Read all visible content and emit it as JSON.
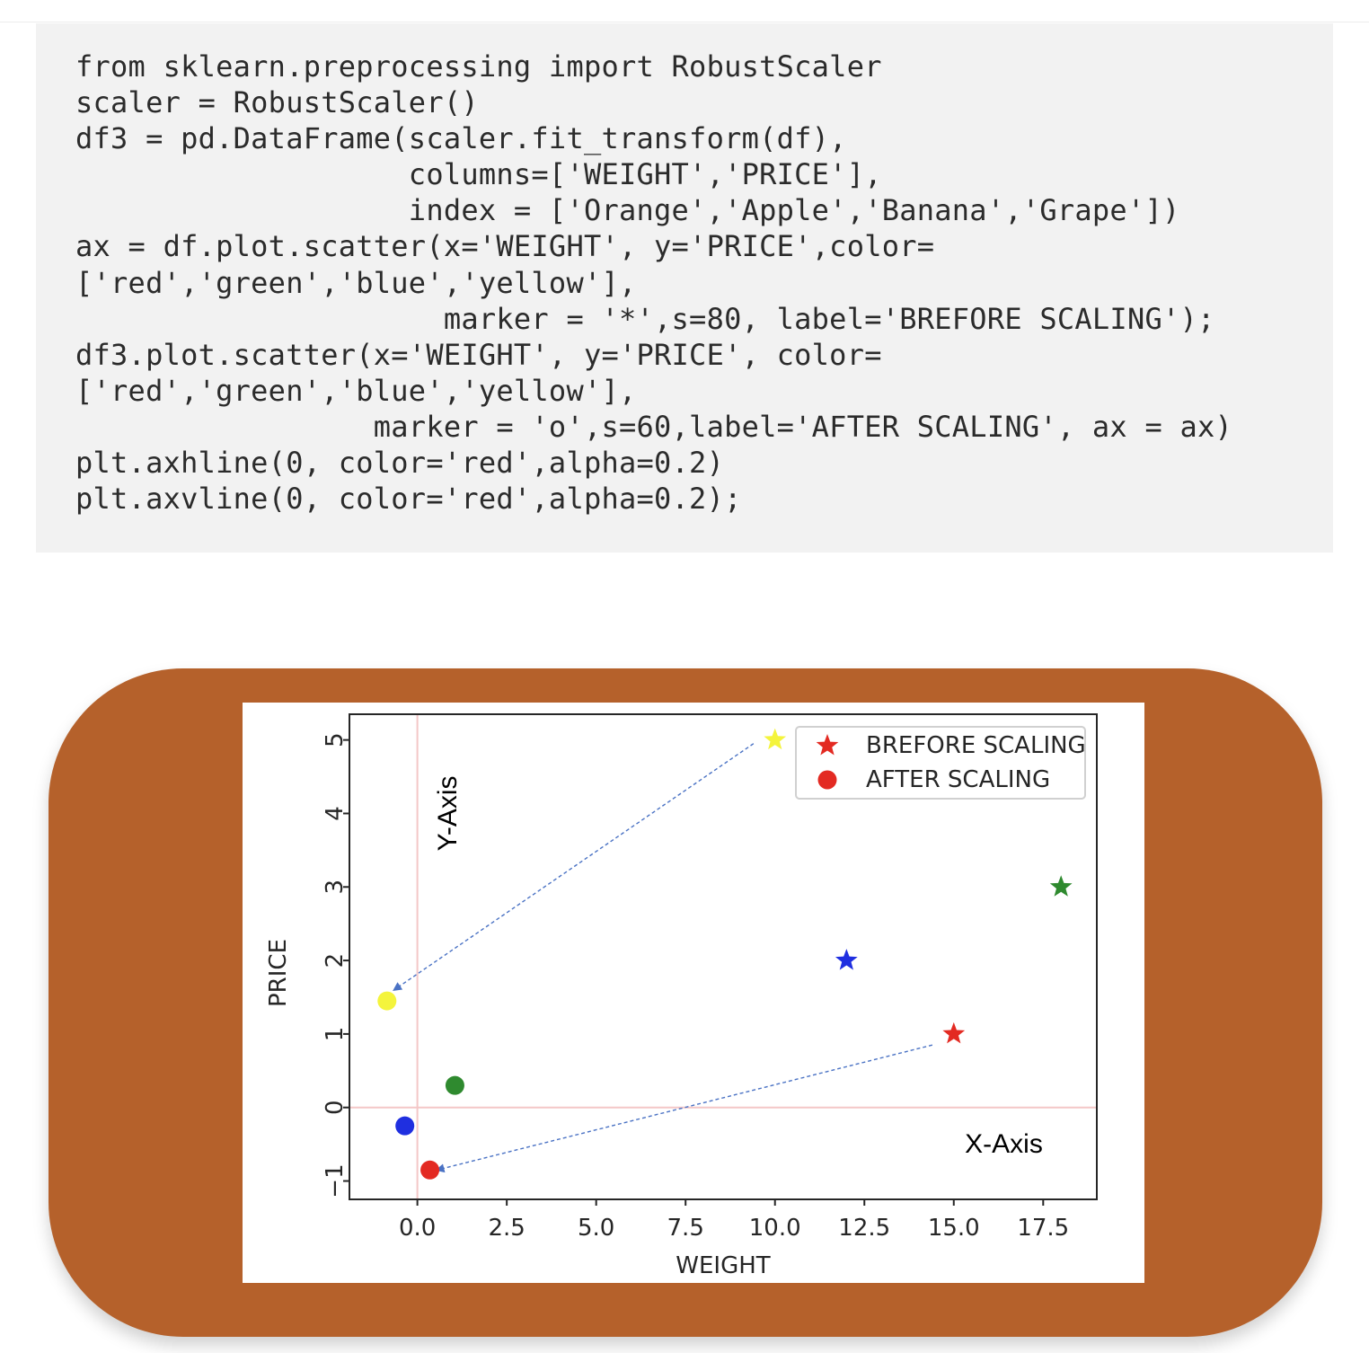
{
  "code": {
    "lines": [
      "from sklearn.preprocessing import RobustScaler",
      "scaler = RobustScaler()",
      "df3 = pd.DataFrame(scaler.fit_transform(df),",
      "                   columns=['WEIGHT','PRICE'],",
      "                   index = ['Orange','Apple','Banana','Grape'])",
      "ax = df.plot.scatter(x='WEIGHT', y='PRICE',color=",
      "['red','green','blue','yellow'],",
      "                     marker = '*',s=80, label='BREFORE SCALING');",
      "df3.plot.scatter(x='WEIGHT', y='PRICE', color=",
      "['red','green','blue','yellow'],",
      "                 marker = 'o',s=60,label='AFTER SCALING', ax = ax)",
      "plt.axhline(0, color='red',alpha=0.2)",
      "plt.axvline(0, color='red',alpha=0.2);"
    ]
  },
  "frame": {
    "color": "#b5612b"
  },
  "chart_data": {
    "type": "scatter",
    "title": "",
    "xlabel": "WEIGHT",
    "ylabel": "PRICE",
    "xlim": [
      -1.9,
      19.0
    ],
    "ylim": [
      -1.25,
      5.35
    ],
    "xticks": [
      0.0,
      2.5,
      5.0,
      7.5,
      10.0,
      12.5,
      15.0,
      17.5
    ],
    "xtick_labels": [
      "0.0",
      "2.5",
      "5.0",
      "7.5",
      "10.0",
      "12.5",
      "15.0",
      "17.5"
    ],
    "yticks": [
      -1,
      0,
      1,
      2,
      3,
      4,
      5
    ],
    "ytick_labels": [
      "−1",
      "0",
      "1",
      "2",
      "3",
      "4",
      "5"
    ],
    "grid": false,
    "legend_position": "top-right",
    "reference_lines": {
      "hline_y": 0,
      "vline_x": 0,
      "color": "#f4c7c7"
    },
    "series": [
      {
        "name": "BREFORE SCALING",
        "marker": "star",
        "points": [
          {
            "x": 15.0,
            "y": 1.0,
            "color": "#e32a22"
          },
          {
            "x": 18.0,
            "y": 3.0,
            "color": "#2f8a2f"
          },
          {
            "x": 12.0,
            "y": 2.0,
            "color": "#1f2fe0"
          },
          {
            "x": 10.0,
            "y": 5.0,
            "color": "#f4f43c"
          }
        ]
      },
      {
        "name": "AFTER SCALING",
        "marker": "circle",
        "points": [
          {
            "x": 0.35,
            "y": -0.85,
            "color": "#e32a22"
          },
          {
            "x": 1.05,
            "y": 0.3,
            "color": "#2f8a2f"
          },
          {
            "x": -0.35,
            "y": -0.25,
            "color": "#1f2fe0"
          },
          {
            "x": -0.85,
            "y": 1.45,
            "color": "#f4f43c"
          }
        ]
      }
    ],
    "annotations": [
      {
        "text": "Y-Axis",
        "x": 0.85,
        "y": 4.0,
        "rotation": -90
      },
      {
        "text": "X-Axis",
        "x": 16.4,
        "y": -0.5,
        "rotation": 0
      }
    ],
    "arrows": [
      {
        "from": [
          9.4,
          4.95
        ],
        "to": [
          -0.65,
          1.6
        ],
        "color": "#4a72c4"
      },
      {
        "from": [
          14.4,
          0.85
        ],
        "to": [
          0.55,
          -0.85
        ],
        "color": "#4a72c4"
      }
    ]
  }
}
